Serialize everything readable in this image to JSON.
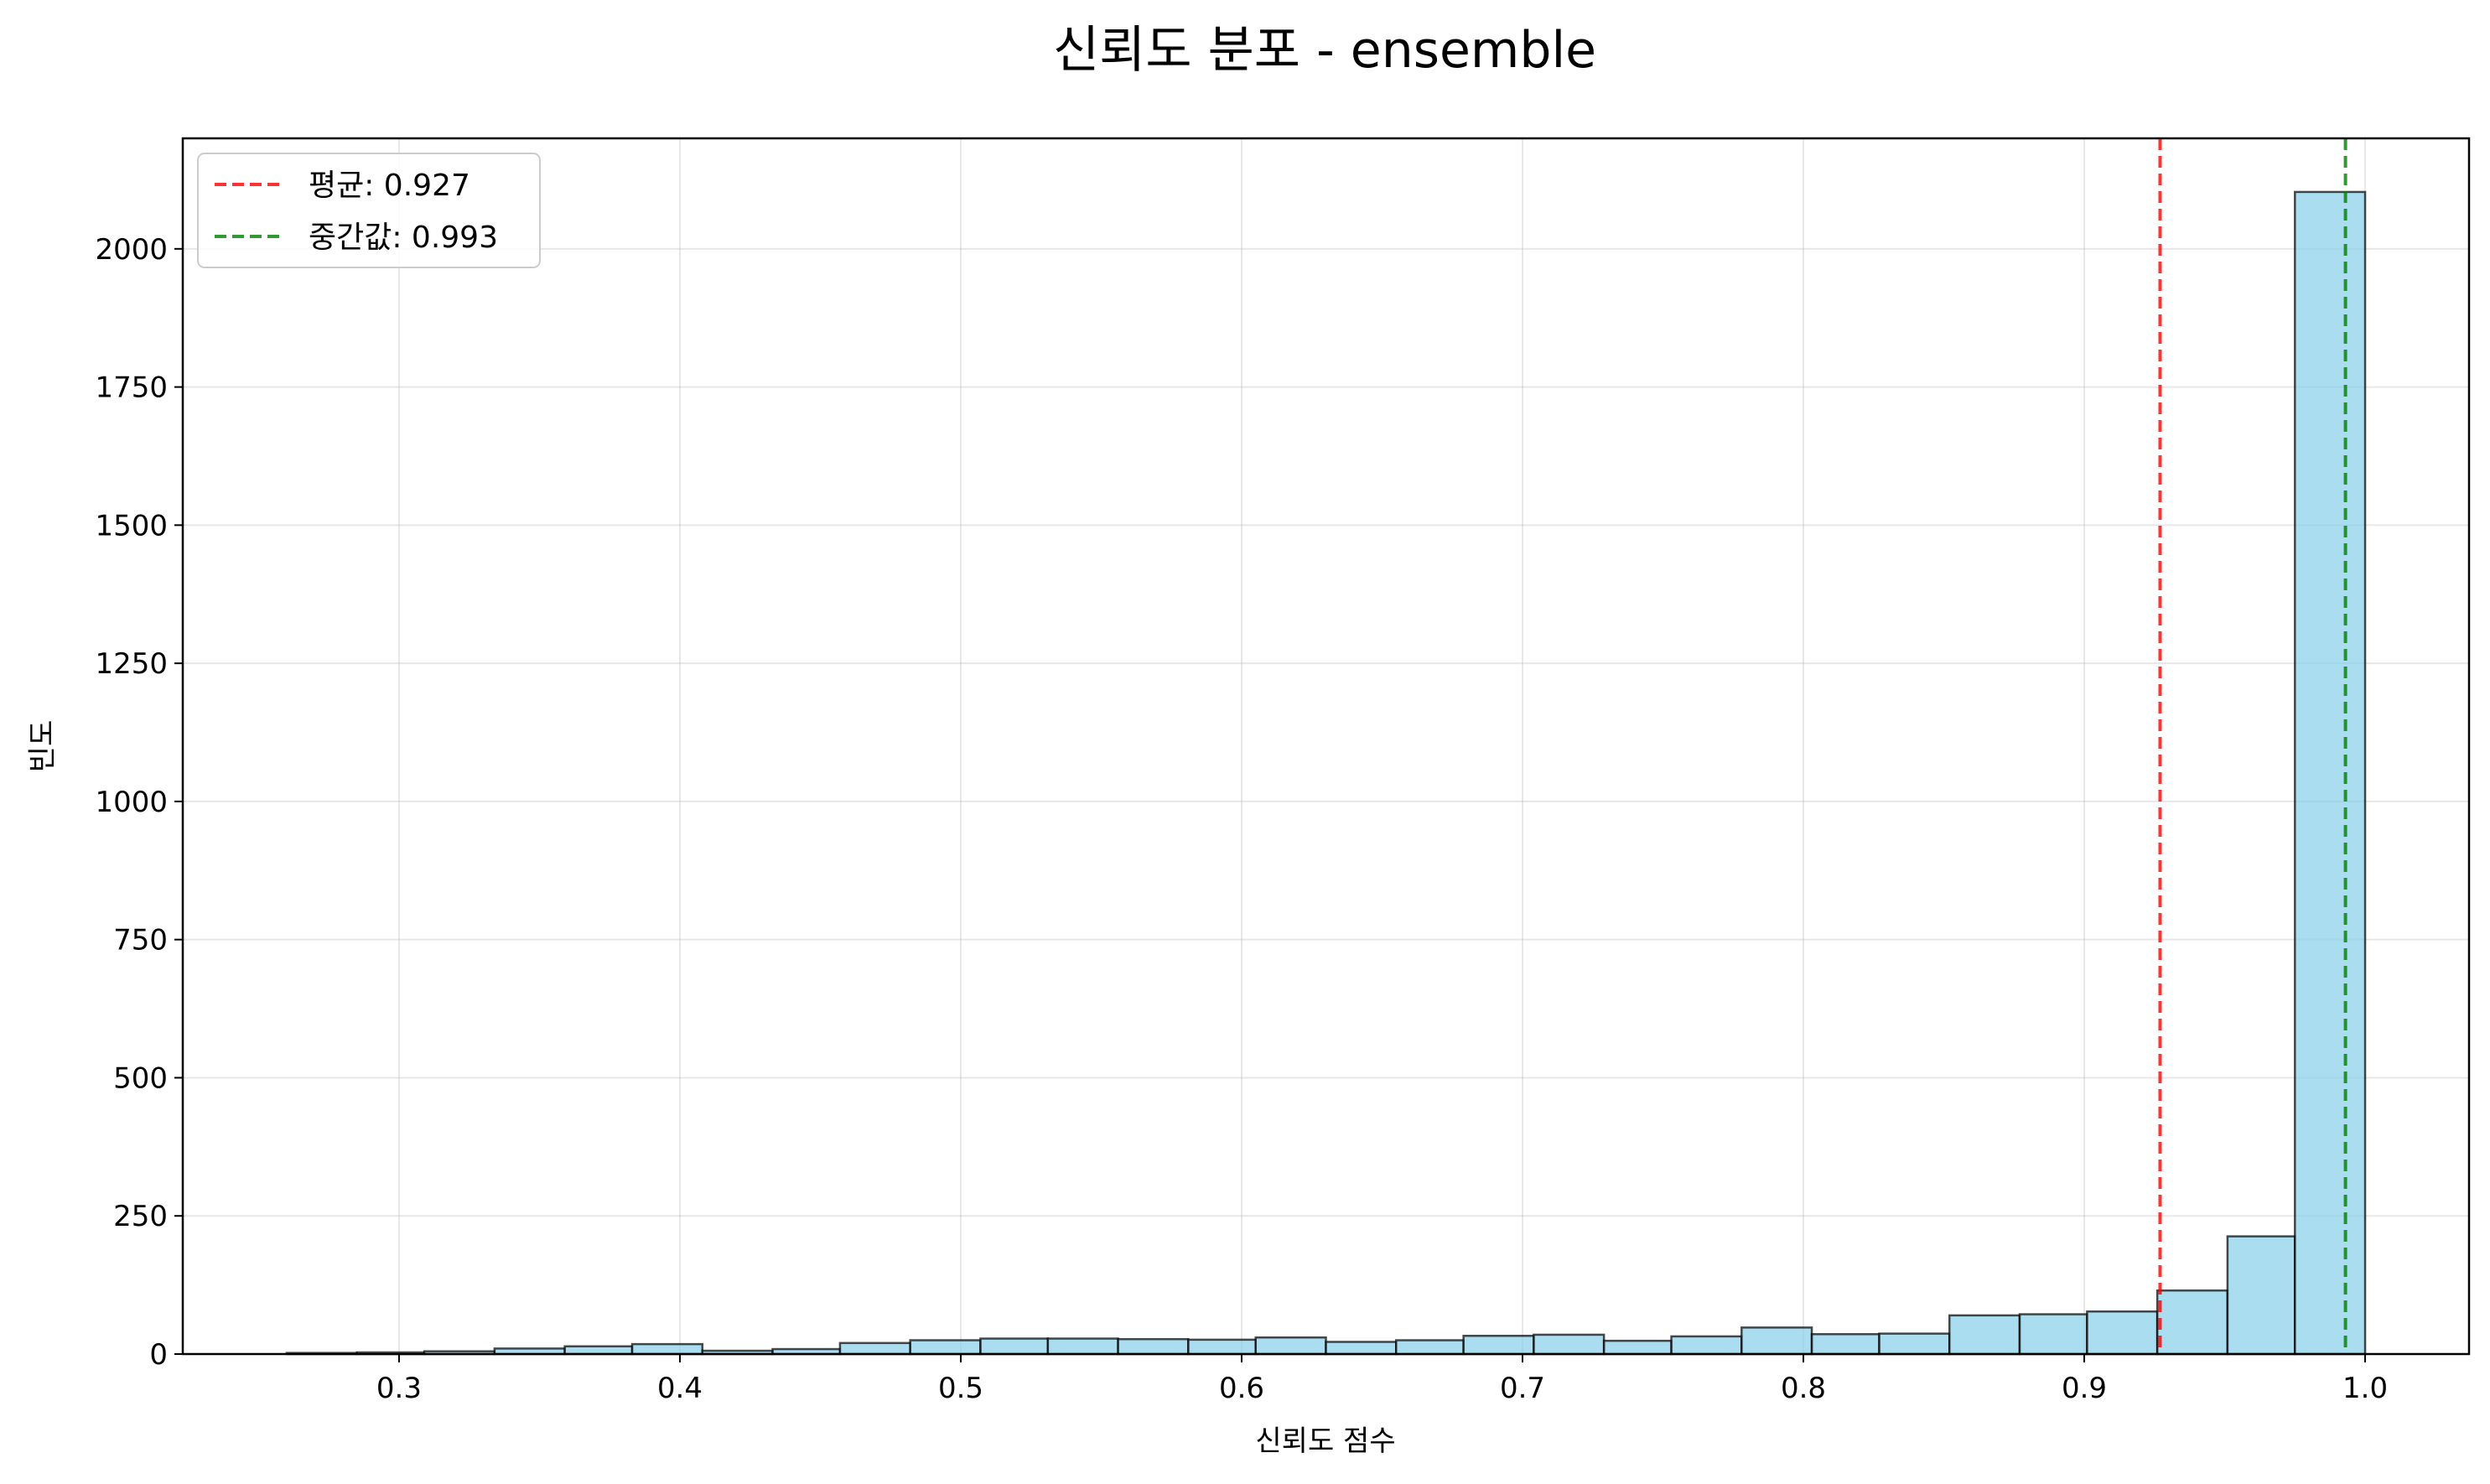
{
  "chart_data": {
    "type": "bar",
    "title": "신뢰도 분포 - ensemble",
    "xlabel": "신뢰도 점수",
    "ylabel": "빈도",
    "xlim": [
      0.223,
      1.037
    ],
    "ylim": [
      0,
      2200
    ],
    "xticks": [
      0.3,
      0.4,
      0.5,
      0.6,
      0.7,
      0.8,
      0.9,
      1.0
    ],
    "xtick_labels": [
      "0.3",
      "0.4",
      "0.5",
      "0.6",
      "0.7",
      "0.8",
      "0.9",
      "1.0"
    ],
    "yticks": [
      0,
      250,
      500,
      750,
      1000,
      1250,
      1500,
      1750,
      2000
    ],
    "ytick_labels": [
      "0",
      "250",
      "500",
      "750",
      "1000",
      "1250",
      "1500",
      "1750",
      "2000"
    ],
    "grid": true,
    "bin_edges": [
      0.26,
      0.285,
      0.309,
      0.334,
      0.359,
      0.383,
      0.408,
      0.433,
      0.457,
      0.482,
      0.507,
      0.531,
      0.556,
      0.581,
      0.605,
      0.63,
      0.655,
      0.679,
      0.704,
      0.729,
      0.753,
      0.778,
      0.803,
      0.827,
      0.852,
      0.877,
      0.901,
      0.926,
      0.951,
      0.975,
      1.0
    ],
    "counts": [
      2,
      3,
      5,
      10,
      14,
      18,
      6,
      9,
      20,
      25,
      28,
      28,
      27,
      26,
      30,
      22,
      25,
      33,
      35,
      24,
      32,
      48,
      36,
      37,
      70,
      72,
      77,
      115,
      213,
      2103
    ],
    "bar_color": "#87ceeb",
    "bar_edge_color": "#000000",
    "mean_line": {
      "value": 0.927,
      "color": "#ff0000",
      "label": "평균: 0.927"
    },
    "median_line": {
      "value": 0.993,
      "color": "#008000",
      "label": "중간값: 0.993"
    },
    "legend_position": "top-left"
  }
}
